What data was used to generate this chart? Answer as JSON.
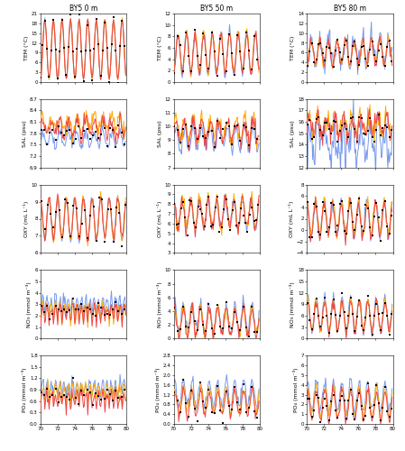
{
  "title_cols": [
    "BY5 0 m",
    "BY5 50 m",
    "BY5 80 m"
  ],
  "row_labels_left": [
    "TEM (°C)",
    "SAL (psu)",
    "OXY (mL L⁻¹)",
    "NO₃ (mmol m⁻³)",
    "PO₄ (mmol m⁻³)"
  ],
  "colors": {
    "FREE": "#7799EE",
    "REANA": "#FFAA00",
    "REANAB": "#EE4444",
    "obs": "black"
  },
  "ylims": [
    [
      [
        0,
        21
      ],
      [
        0,
        12
      ],
      [
        0,
        14
      ]
    ],
    [
      [
        6.9,
        8.7
      ],
      [
        7.0,
        12.0
      ],
      [
        12.0,
        18.0
      ]
    ],
    [
      [
        6,
        10
      ],
      [
        3,
        10
      ],
      [
        -4.0,
        8.0
      ]
    ],
    [
      [
        0,
        6.0
      ],
      [
        0,
        10
      ],
      [
        0,
        18
      ]
    ],
    [
      [
        0.0,
        1.8
      ],
      [
        0.0,
        2.8
      ],
      [
        0.0,
        7.0
      ]
    ]
  ],
  "yticks": [
    [
      [
        0,
        3,
        6,
        9,
        12,
        15,
        18,
        21
      ],
      [
        0,
        2,
        4,
        6,
        8,
        10,
        12
      ],
      [
        0,
        2,
        4,
        6,
        8,
        10,
        12,
        14
      ]
    ],
    [
      [
        6.9,
        7.2,
        7.5,
        7.8,
        8.1,
        8.4,
        8.7
      ],
      [
        7.0,
        8.0,
        9.0,
        10.0,
        11.0,
        12.0
      ],
      [
        12.0,
        13.0,
        14.0,
        15.0,
        16.0,
        17.0,
        18.0
      ]
    ],
    [
      [
        6,
        7,
        8,
        9,
        10
      ],
      [
        3,
        4,
        5,
        6,
        7,
        8,
        9,
        10
      ],
      [
        -4.0,
        -2.0,
        0.0,
        2.0,
        4.0,
        6.0,
        8.0
      ]
    ],
    [
      [
        0,
        1,
        2,
        3,
        4,
        5,
        6
      ],
      [
        0,
        2,
        4,
        6,
        8,
        10
      ],
      [
        0,
        3,
        6,
        9,
        12,
        15,
        18
      ]
    ],
    [
      [
        0.0,
        0.3,
        0.6,
        0.9,
        1.2,
        1.5,
        1.8
      ],
      [
        0.0,
        0.4,
        0.8,
        1.2,
        1.6,
        2.0,
        2.4,
        2.8
      ],
      [
        0.0,
        1.0,
        2.0,
        3.0,
        4.0,
        5.0,
        6.0,
        7.0
      ]
    ]
  ],
  "xticks": [
    70,
    72,
    74,
    76,
    78,
    80
  ],
  "xlim": [
    70,
    80
  ],
  "background_color": "#ffffff",
  "line_width": 0.7,
  "obs_size": 2.5,
  "n_rows": 5,
  "n_cols": 3,
  "n_months": 120
}
